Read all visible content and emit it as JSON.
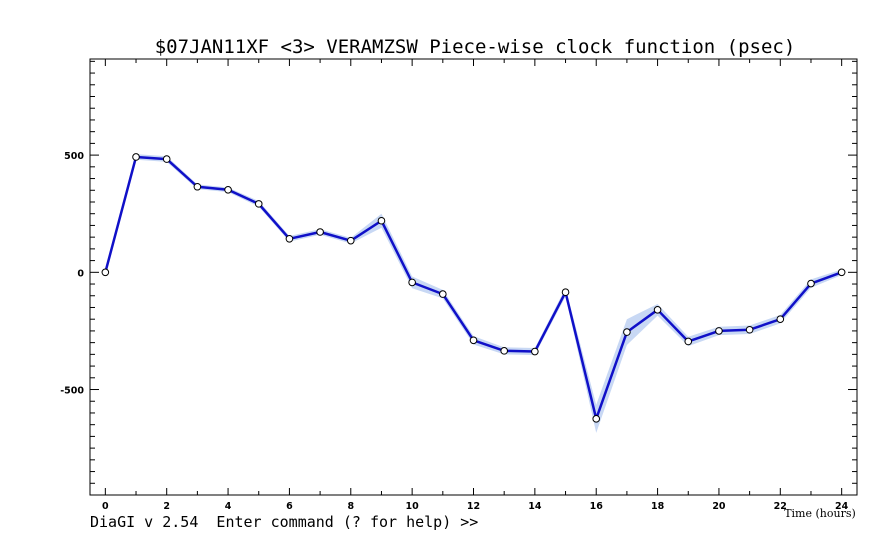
{
  "window": {
    "status_line": "DiaGI v 2.54  Enter command (? for help) >>"
  },
  "chart_data": {
    "type": "line",
    "title": "$07JAN11XF <3>  VERAMZSW  Piece-wise clock function (psec)",
    "xlabel": "Time (hours)",
    "ylabel": "",
    "xlim": [
      -0.5,
      24.5
    ],
    "ylim": [
      -950,
      910
    ],
    "x_ticks": [
      0,
      2,
      4,
      6,
      8,
      10,
      12,
      14,
      16,
      18,
      20,
      22,
      24
    ],
    "y_ticks": [
      -500,
      0,
      500
    ],
    "grid": false,
    "colors": {
      "line": "#1010c8",
      "band": "#c8d8f4",
      "marker_fill": "#ffffff",
      "marker_edge": "#000000"
    },
    "series": [
      {
        "x": [
          0,
          1,
          2,
          3,
          4,
          5,
          6,
          7,
          8,
          9,
          10,
          11,
          12,
          13,
          14,
          15,
          16,
          17,
          18,
          19,
          20,
          21,
          22,
          23,
          24
        ],
        "values": [
          0,
          492,
          483,
          365,
          352,
          292,
          143,
          172,
          135,
          220,
          -43,
          -93,
          -290,
          -335,
          -338,
          -85,
          -625,
          -255,
          -160,
          -295,
          -250,
          -245,
          -200,
          -48,
          0
        ],
        "errors": [
          0,
          12,
          12,
          10,
          10,
          12,
          12,
          12,
          12,
          30,
          25,
          18,
          18,
          15,
          15,
          18,
          60,
          55,
          25,
          20,
          18,
          18,
          18,
          18,
          12
        ]
      }
    ]
  }
}
